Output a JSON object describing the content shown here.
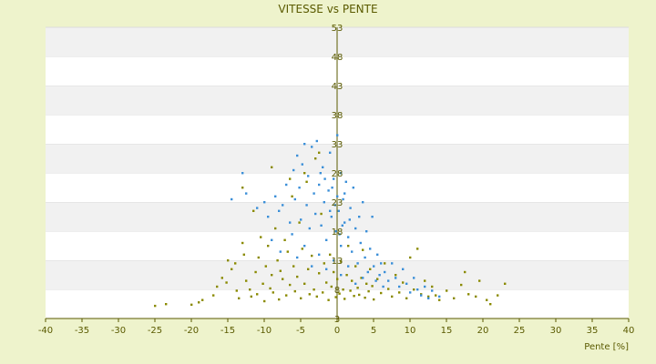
{
  "chart_data": {
    "type": "scatter",
    "title": "VITESSE vs PENTE",
    "xlabel": "Pente [%]",
    "ylabel": "",
    "xlim": [
      -40,
      40
    ],
    "ylim": [
      3,
      53
    ],
    "x_ticks": [
      -40,
      -35,
      -30,
      -25,
      -20,
      -15,
      -10,
      -5,
      0,
      5,
      10,
      15,
      20,
      25,
      30,
      35,
      40
    ],
    "y_ticks": [
      3,
      8,
      13,
      18,
      23,
      28,
      33,
      38,
      43,
      48,
      53
    ],
    "grid": "alternating horizontal bands",
    "legend": "none",
    "series": [
      {
        "color": "#8a8a00",
        "points": [
          [
            -25.0,
            5.2
          ],
          [
            -23.5,
            5.5
          ],
          [
            -20.0,
            5.4
          ],
          [
            -19.0,
            5.8
          ],
          [
            -18.5,
            6.2
          ],
          [
            -17.0,
            7.0
          ],
          [
            -16.5,
            8.5
          ],
          [
            -15.8,
            10.0
          ],
          [
            -15.2,
            9.2
          ],
          [
            -15.0,
            13.0
          ],
          [
            -14.5,
            11.5
          ],
          [
            -14.0,
            12.5
          ],
          [
            -13.8,
            7.8
          ],
          [
            -13.5,
            6.5
          ],
          [
            -13.0,
            16.0
          ],
          [
            -12.8,
            14.0
          ],
          [
            -12.5,
            9.5
          ],
          [
            -12.0,
            8.0
          ],
          [
            -11.8,
            6.8
          ],
          [
            -11.5,
            21.5
          ],
          [
            -11.2,
            11.0
          ],
          [
            -11.0,
            7.2
          ],
          [
            -10.8,
            13.5
          ],
          [
            -10.5,
            17.0
          ],
          [
            -10.2,
            9.0
          ],
          [
            -10.0,
            6.0
          ],
          [
            -9.8,
            12.0
          ],
          [
            -9.5,
            15.5
          ],
          [
            -9.2,
            8.2
          ],
          [
            -9.0,
            10.5
          ],
          [
            -8.8,
            7.5
          ],
          [
            -8.5,
            18.5
          ],
          [
            -8.2,
            13.0
          ],
          [
            -8.0,
            6.3
          ],
          [
            -7.8,
            11.2
          ],
          [
            -7.5,
            9.8
          ],
          [
            -7.2,
            16.5
          ],
          [
            -7.0,
            7.0
          ],
          [
            -6.8,
            14.5
          ],
          [
            -6.5,
            8.8
          ],
          [
            -6.2,
            24.0
          ],
          [
            -6.0,
            12.0
          ],
          [
            -5.8,
            7.7
          ],
          [
            -5.5,
            10.2
          ],
          [
            -5.2,
            19.5
          ],
          [
            -5.0,
            6.5
          ],
          [
            -4.8,
            15.0
          ],
          [
            -4.5,
            9.0
          ],
          [
            -4.2,
            26.5
          ],
          [
            -4.0,
            11.5
          ],
          [
            -3.8,
            7.2
          ],
          [
            -3.5,
            13.8
          ],
          [
            -3.2,
            8.0
          ],
          [
            -3.0,
            30.5
          ],
          [
            -2.8,
            6.8
          ],
          [
            -2.5,
            10.8
          ],
          [
            -2.2,
            21.0
          ],
          [
            -2.0,
            7.5
          ],
          [
            -1.8,
            12.5
          ],
          [
            -1.5,
            9.2
          ],
          [
            -1.2,
            6.2
          ],
          [
            -1.0,
            14.0
          ],
          [
            -0.8,
            8.5
          ],
          [
            -0.5,
            11.0
          ],
          [
            -0.2,
            6.7
          ],
          [
            0.0,
            9.8
          ],
          [
            0.3,
            7.3
          ],
          [
            0.5,
            12.8
          ],
          [
            0.8,
            8.0
          ],
          [
            1.0,
            6.4
          ],
          [
            1.3,
            10.5
          ],
          [
            1.5,
            15.5
          ],
          [
            1.8,
            7.8
          ],
          [
            2.0,
            9.5
          ],
          [
            2.3,
            6.9
          ],
          [
            2.5,
            12.0
          ],
          [
            2.8,
            8.3
          ],
          [
            3.0,
            7.1
          ],
          [
            3.3,
            10.0
          ],
          [
            3.5,
            14.8
          ],
          [
            3.8,
            6.6
          ],
          [
            4.0,
            9.0
          ],
          [
            4.3,
            7.7
          ],
          [
            4.5,
            11.5
          ],
          [
            4.8,
            8.6
          ],
          [
            5.0,
            6.3
          ],
          [
            5.5,
            9.8
          ],
          [
            6.0,
            7.4
          ],
          [
            6.5,
            12.5
          ],
          [
            7.0,
            8.1
          ],
          [
            7.5,
            6.8
          ],
          [
            8.0,
            10.5
          ],
          [
            8.5,
            7.5
          ],
          [
            9.0,
            9.2
          ],
          [
            9.5,
            6.5
          ],
          [
            10.0,
            13.5
          ],
          [
            10.5,
            8.0
          ],
          [
            11.0,
            15.0
          ],
          [
            11.5,
            7.2
          ],
          [
            12.0,
            9.5
          ],
          [
            12.5,
            6.8
          ],
          [
            13.0,
            8.5
          ],
          [
            13.5,
            7.0
          ],
          [
            14.0,
            6.2
          ],
          [
            15.0,
            7.8
          ],
          [
            16.0,
            6.5
          ],
          [
            17.0,
            8.8
          ],
          [
            17.5,
            11.0
          ],
          [
            18.0,
            7.2
          ],
          [
            19.0,
            6.8
          ],
          [
            19.5,
            9.5
          ],
          [
            20.5,
            6.2
          ],
          [
            21.0,
            5.5
          ],
          [
            22.0,
            7.0
          ],
          [
            23.0,
            9.0
          ],
          [
            -2.5,
            31.5
          ],
          [
            -4.5,
            28.0
          ],
          [
            -6.5,
            27.0
          ],
          [
            -9.0,
            29.0
          ],
          [
            -13.0,
            25.5
          ]
        ]
      },
      {
        "color": "#3b8fd8",
        "points": [
          [
            -13.0,
            28.0
          ],
          [
            -12.5,
            24.5
          ],
          [
            -14.5,
            23.5
          ],
          [
            -11.0,
            22.0
          ],
          [
            -10.0,
            23.0
          ],
          [
            -9.5,
            20.5
          ],
          [
            -8.5,
            24.0
          ],
          [
            -8.0,
            21.5
          ],
          [
            -7.5,
            22.5
          ],
          [
            -7.0,
            26.0
          ],
          [
            -6.5,
            19.5
          ],
          [
            -6.0,
            28.5
          ],
          [
            -5.8,
            23.5
          ],
          [
            -5.5,
            31.0
          ],
          [
            -5.2,
            25.5
          ],
          [
            -5.0,
            20.0
          ],
          [
            -4.8,
            29.5
          ],
          [
            -4.5,
            33.0
          ],
          [
            -4.2,
            22.5
          ],
          [
            -4.0,
            27.5
          ],
          [
            -3.8,
            18.5
          ],
          [
            -3.5,
            32.5
          ],
          [
            -3.2,
            24.5
          ],
          [
            -3.0,
            21.0
          ],
          [
            -2.8,
            33.5
          ],
          [
            -2.5,
            26.0
          ],
          [
            -2.2,
            19.0
          ],
          [
            -2.0,
            29.0
          ],
          [
            -1.8,
            23.0
          ],
          [
            -1.5,
            16.5
          ],
          [
            -1.2,
            25.0
          ],
          [
            -1.0,
            31.5
          ],
          [
            -0.8,
            20.5
          ],
          [
            -0.5,
            27.0
          ],
          [
            -0.2,
            18.0
          ],
          [
            0.0,
            34.5
          ],
          [
            0.0,
            24.0
          ],
          [
            0.2,
            21.5
          ],
          [
            0.5,
            28.0
          ],
          [
            0.5,
            15.5
          ],
          [
            0.8,
            23.5
          ],
          [
            1.0,
            19.5
          ],
          [
            1.2,
            26.5
          ],
          [
            1.5,
            17.0
          ],
          [
            1.8,
            22.0
          ],
          [
            2.0,
            14.5
          ],
          [
            2.2,
            25.5
          ],
          [
            2.5,
            18.5
          ],
          [
            2.8,
            12.5
          ],
          [
            3.0,
            20.5
          ],
          [
            3.2,
            16.0
          ],
          [
            3.5,
            23.0
          ],
          [
            3.8,
            13.5
          ],
          [
            4.0,
            18.0
          ],
          [
            4.2,
            11.0
          ],
          [
            4.5,
            15.0
          ],
          [
            4.8,
            20.5
          ],
          [
            5.0,
            12.0
          ],
          [
            5.3,
            9.5
          ],
          [
            5.5,
            14.0
          ],
          [
            5.8,
            10.5
          ],
          [
            6.0,
            12.5
          ],
          [
            6.3,
            8.5
          ],
          [
            6.5,
            11.0
          ],
          [
            7.0,
            9.5
          ],
          [
            7.5,
            12.5
          ],
          [
            8.0,
            10.0
          ],
          [
            8.5,
            8.5
          ],
          [
            9.0,
            11.5
          ],
          [
            9.5,
            9.0
          ],
          [
            10.0,
            7.5
          ],
          [
            10.5,
            10.0
          ],
          [
            11.0,
            8.0
          ],
          [
            11.5,
            7.0
          ],
          [
            12.0,
            8.5
          ],
          [
            12.5,
            6.5
          ],
          [
            13.0,
            7.8
          ],
          [
            14.0,
            6.8
          ],
          [
            -9.0,
            16.5
          ],
          [
            -7.8,
            14.5
          ],
          [
            -6.2,
            17.5
          ],
          [
            -5.5,
            13.5
          ],
          [
            -4.5,
            15.5
          ],
          [
            -3.5,
            12.0
          ],
          [
            -2.5,
            14.0
          ],
          [
            -1.5,
            11.5
          ],
          [
            -0.5,
            13.0
          ],
          [
            0.5,
            10.5
          ],
          [
            1.5,
            12.0
          ],
          [
            2.5,
            9.0
          ],
          [
            3.5,
            10.0
          ],
          [
            -1.0,
            21.5
          ],
          [
            -0.3,
            22.5
          ],
          [
            0.3,
            17.5
          ],
          [
            1.0,
            24.5
          ],
          [
            1.7,
            20.0
          ],
          [
            -2.3,
            28.0
          ],
          [
            -1.7,
            27.0
          ],
          [
            -0.7,
            25.5
          ],
          [
            0.7,
            19.0
          ]
        ]
      }
    ]
  }
}
